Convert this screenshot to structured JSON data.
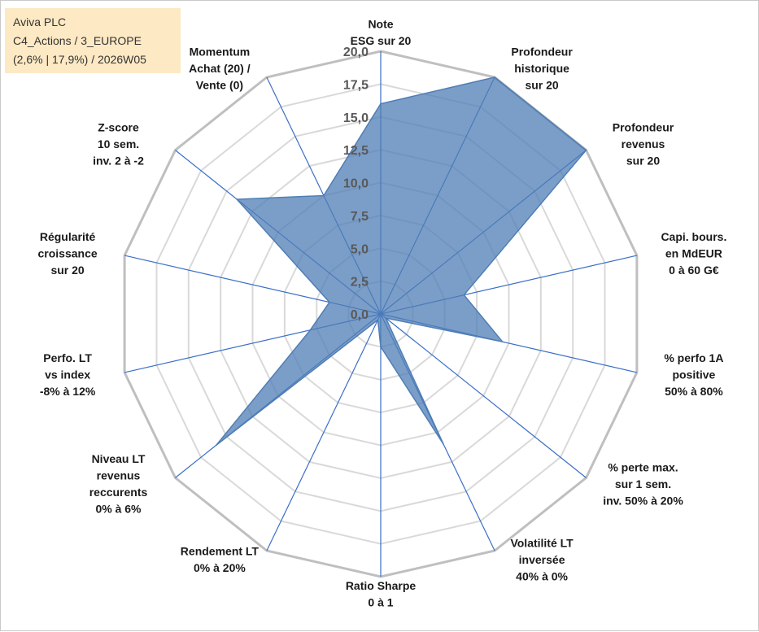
{
  "info_box": {
    "company": "Aviva PLC",
    "category": "C4_Actions / 3_EUROPE",
    "stats": "(2,6% | 17,9%) / 2026W05"
  },
  "colors": {
    "fill": "#4f7eb5",
    "spoke": "#3a6fc9",
    "grid": "#d9d9d9",
    "outer_grid": "#bfbfbf",
    "box": "#fde9c4"
  },
  "chart_data": {
    "type": "radar",
    "title": "",
    "rlim": [
      0,
      20
    ],
    "ticks": [
      "0,0",
      "2,5",
      "5,0",
      "7,5",
      "10,0",
      "12,5",
      "15,0",
      "17,5",
      "20,0"
    ],
    "axes": [
      {
        "label": [
          "Note",
          "ESG sur 20"
        ],
        "value": 16.0
      },
      {
        "label": [
          "Profondeur",
          "historique",
          "sur 20"
        ],
        "value": 20.0
      },
      {
        "label": [
          "Profondeur",
          "revenus",
          "sur 20"
        ],
        "value": 20.0
      },
      {
        "label": [
          "Capi. bours.",
          "en MdEUR",
          "0 à 60 G€"
        ],
        "value": 6.5
      },
      {
        "label": [
          "% perfo 1A",
          "positive",
          "50% à 80%"
        ],
        "value": 9.5
      },
      {
        "label": [
          "% perte max.",
          "sur 1 sem.",
          "inv. 50% à 20%"
        ],
        "value": 0.5
      },
      {
        "label": [
          "Volatilité LT",
          "inversée",
          "40% à 0%"
        ],
        "value": 11.0
      },
      {
        "label": [
          "Ratio Sharpe",
          "0 à 1"
        ],
        "value": 2.5
      },
      {
        "label": [
          "Rendement LT",
          "0% à 20%"
        ],
        "value": 0.5
      },
      {
        "label": [
          "Niveau LT",
          "revenus",
          "reccurents",
          "0% à 6%"
        ],
        "value": 16.0
      },
      {
        "label": [
          "Perfo. LT",
          "vs index",
          "-8% à 12%"
        ],
        "value": 5.5
      },
      {
        "label": [
          "Régularité",
          "croissance",
          "sur 20"
        ],
        "value": 4.0
      },
      {
        "label": [
          "Z-score",
          "10 sem.",
          "inv. 2 à -2"
        ],
        "value": 14.0
      },
      {
        "label": [
          "Momentum",
          "Achat (20) /",
          "Vente (0)"
        ],
        "value": 10.0
      }
    ]
  }
}
